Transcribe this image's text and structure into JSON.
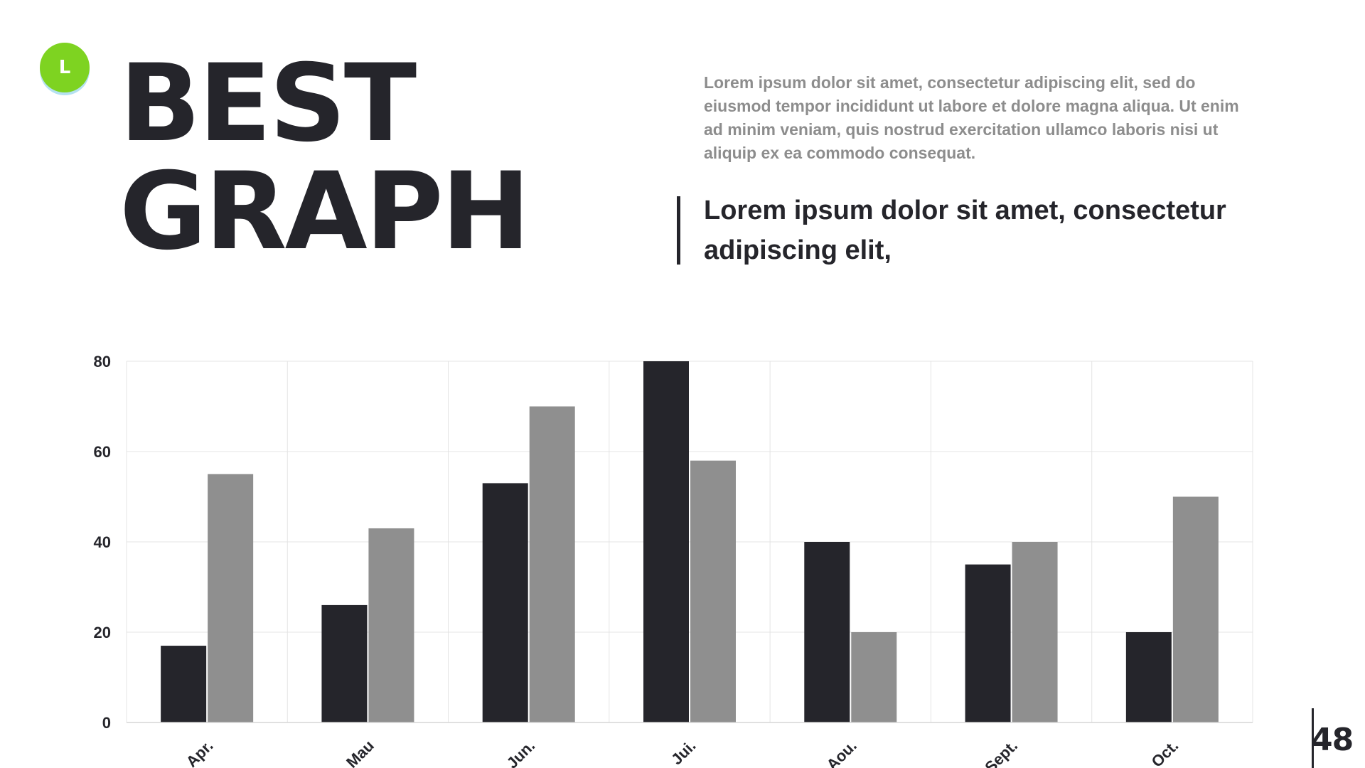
{
  "logo": {
    "letter": "L",
    "icon": "logo-letter-badge-icon",
    "color": "#7ed321"
  },
  "title": {
    "line1": "BEST",
    "line2": "GRAPH"
  },
  "intro_text": "Lorem ipsum dolor sit amet, consectetur adipiscing elit, sed do eiusmod tempor incididunt ut labore et dolore magna aliqua. Ut enim ad minim veniam, quis nostrud exercitation ullamco laboris nisi ut aliquip ex ea commodo consequat.",
  "quote_text": "Lorem ipsum dolor sit amet, consectetur adipiscing elit,",
  "page_number": "48",
  "chart_data": {
    "type": "bar",
    "categories": [
      "Apr.",
      "Mau",
      "Jun.",
      "Jui.",
      "Aou.",
      "Sept.",
      "Oct."
    ],
    "series": [
      {
        "values": [
          17,
          26,
          53,
          80,
          40,
          35,
          20
        ],
        "color": "#25252b"
      },
      {
        "values": [
          55,
          43,
          70,
          58,
          20,
          40,
          50
        ],
        "color": "#8f8f8f"
      }
    ],
    "ylim": [
      0,
      80
    ],
    "yticks": [
      0,
      20,
      40,
      60,
      80
    ],
    "grid": true,
    "legend": "none",
    "title": "",
    "xlabel": "",
    "ylabel": ""
  }
}
